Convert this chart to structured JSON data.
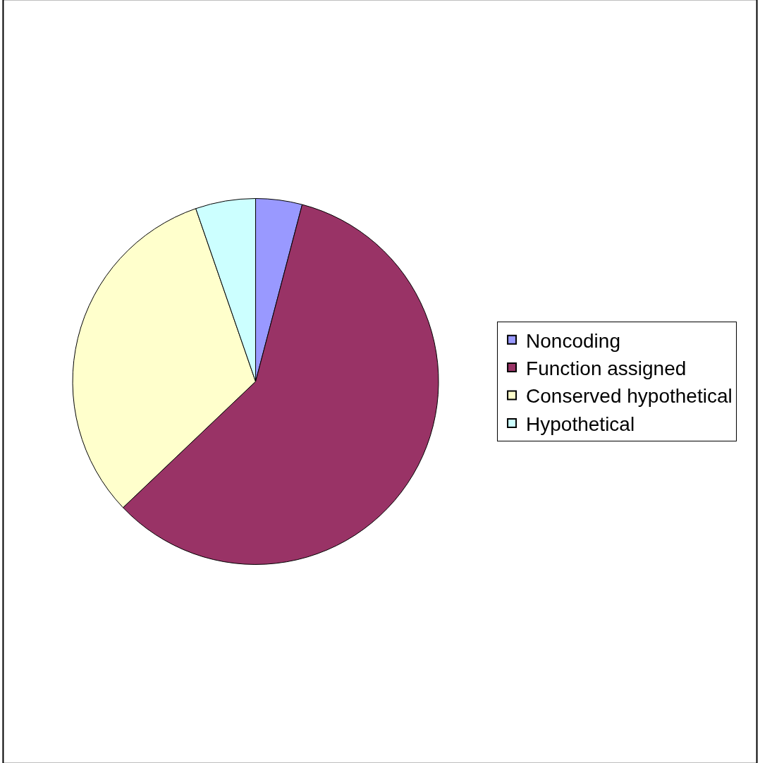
{
  "chart_data": {
    "type": "pie",
    "categories": [
      "Noncoding",
      "Function assigned",
      "Conserved hypothetical",
      "Hypothetical"
    ],
    "values": [
      4.1,
      58.8,
      31.8,
      5.3
    ],
    "colors": [
      "#9999ff",
      "#993366",
      "#ffffcc",
      "#ccffff"
    ],
    "legend": "right"
  }
}
